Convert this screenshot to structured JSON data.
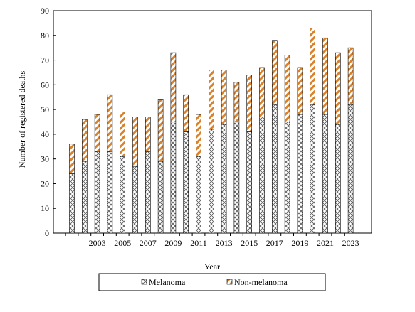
{
  "chart_data": {
    "type": "bar",
    "stacked": true,
    "title": "",
    "xlabel": "Year",
    "ylabel": "Number of registered deaths",
    "ylim": [
      0,
      90
    ],
    "yticks": [
      0,
      10,
      20,
      30,
      40,
      50,
      60,
      70,
      80,
      90
    ],
    "grid": false,
    "legend_position": "bottom",
    "categories": [
      "2001",
      "2002",
      "2003",
      "2004",
      "2005",
      "2006",
      "2007",
      "2008",
      "2009",
      "2010",
      "2011",
      "2012",
      "2013",
      "2014",
      "2015",
      "2016",
      "2017",
      "2018",
      "2019",
      "2020",
      "2021",
      "2022",
      "2023"
    ],
    "tick_labels_shown": [
      "2003",
      "2005",
      "2007",
      "2009",
      "2011",
      "2013",
      "2015",
      "2017",
      "2019",
      "2021",
      "2023"
    ],
    "series": [
      {
        "name": "Melanoma",
        "color": "#555555",
        "pattern": "crosshatch",
        "values": [
          24,
          29,
          33,
          33,
          31,
          27,
          33,
          29,
          45,
          41,
          31,
          42,
          44,
          45,
          41,
          47,
          52,
          45,
          48,
          52,
          48,
          44,
          52
        ]
      },
      {
        "name": "Non-melanoma",
        "color": "#d9822b",
        "pattern": "diagonal-stripes",
        "values": [
          12,
          17,
          15,
          23,
          18,
          20,
          14,
          25,
          28,
          15,
          17,
          24,
          22,
          16,
          23,
          20,
          26,
          27,
          19,
          31,
          31,
          29,
          23
        ]
      }
    ]
  }
}
